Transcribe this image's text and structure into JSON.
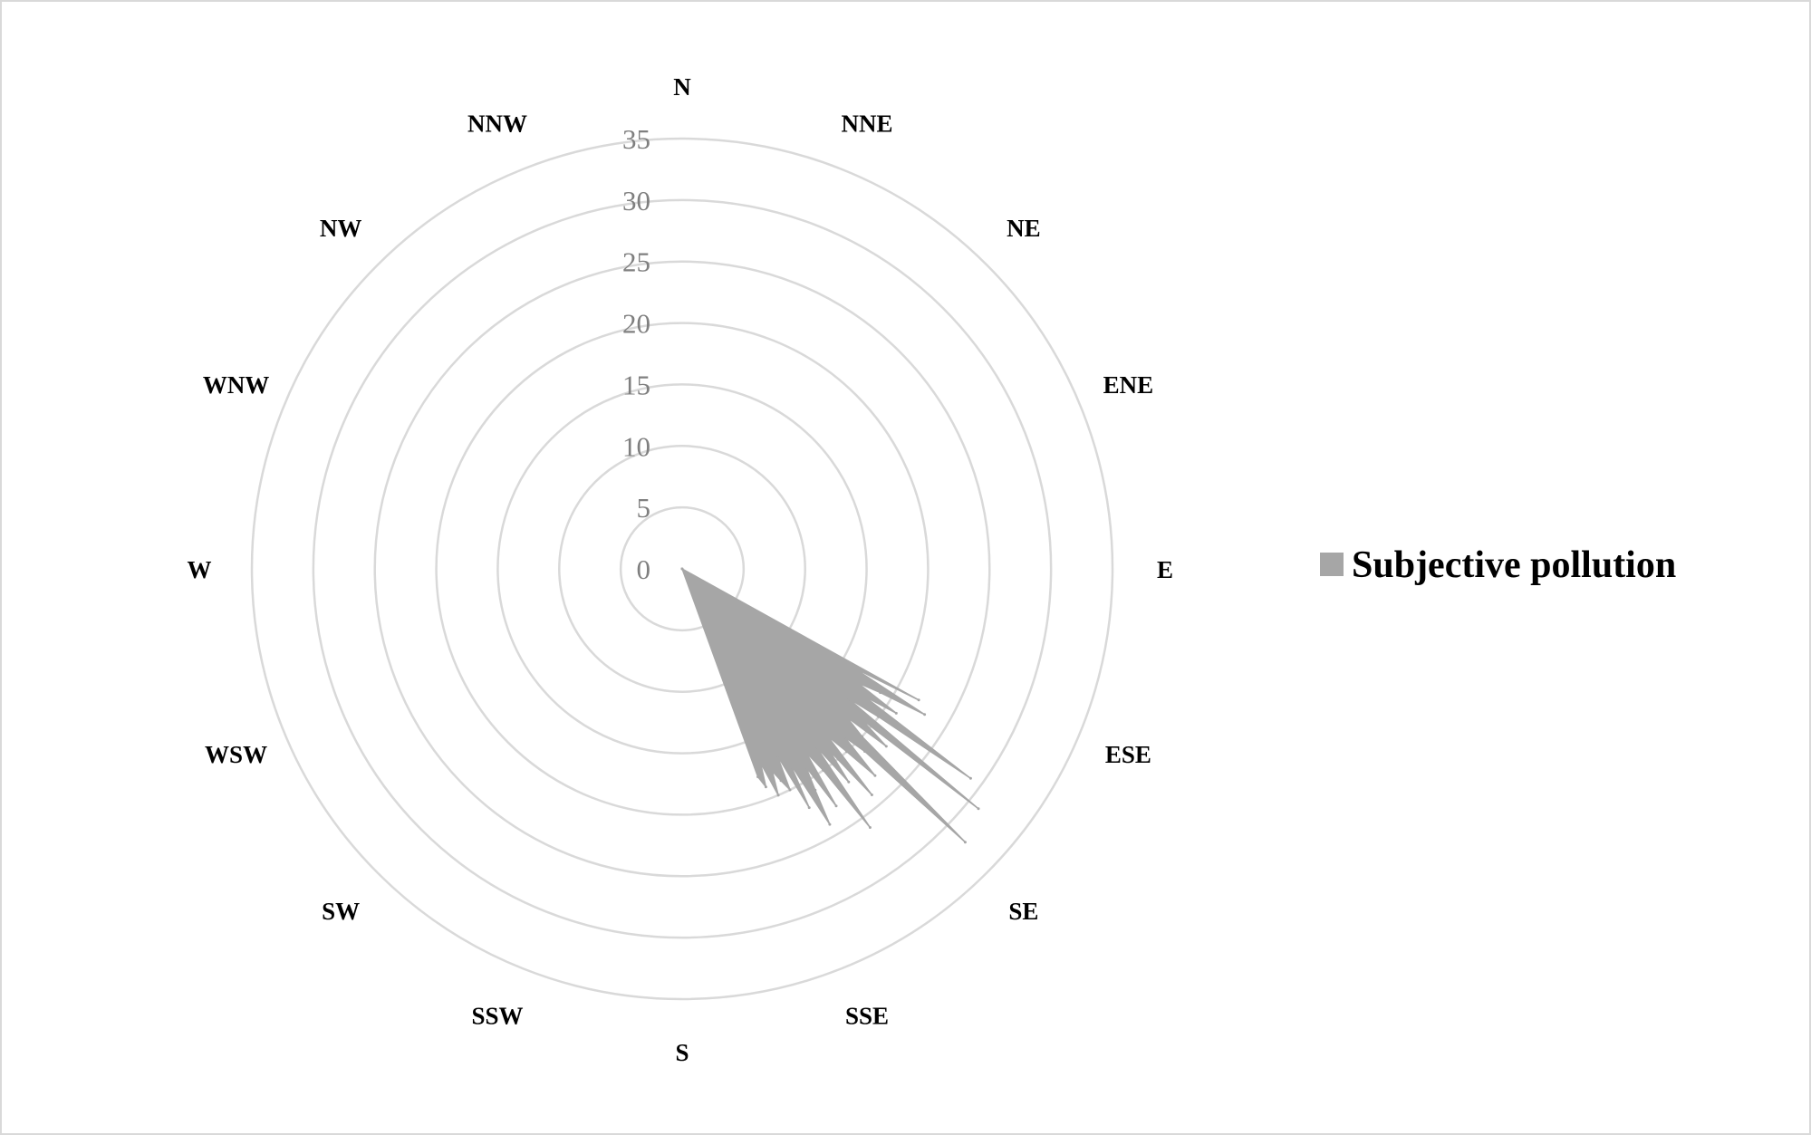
{
  "chart_data": {
    "type": "radar",
    "directions": [
      "N",
      "NNE",
      "NE",
      "ENE",
      "E",
      "ESE",
      "SE",
      "SSE",
      "S",
      "SSW",
      "SW",
      "WSW",
      "W",
      "WNW",
      "NW",
      "NNW"
    ],
    "radial_ticks": [
      0,
      5,
      10,
      15,
      20,
      25,
      30,
      35
    ],
    "rlim": [
      0,
      35
    ],
    "grid": true,
    "legend_position": "right",
    "colors": {
      "series": "#a6a6a6",
      "grid": "#d9d9d9",
      "tick_text": "#7f7f7f"
    },
    "series": [
      {
        "name": "Subjective pollution",
        "bearing_step_deg": 1,
        "points": [
          [
            118,
            0
          ],
          [
            119,
            22
          ],
          [
            120,
            16
          ],
          [
            121,
            23
          ],
          [
            122,
            19
          ],
          [
            123,
            17
          ],
          [
            124,
            21
          ],
          [
            125,
            18
          ],
          [
            126,
            29
          ],
          [
            127,
            20
          ],
          [
            128,
            17
          ],
          [
            129,
            31
          ],
          [
            130,
            19
          ],
          [
            131,
            22
          ],
          [
            132,
            18
          ],
          [
            133,
            20
          ],
          [
            134,
            32
          ],
          [
            135,
            21
          ],
          [
            136,
            19
          ],
          [
            137,
            23
          ],
          [
            138,
            20
          ],
          [
            139,
            18
          ],
          [
            140,
            24
          ],
          [
            141,
            19
          ],
          [
            142,
            22
          ],
          [
            143,
            18
          ],
          [
            144,
            26
          ],
          [
            145,
            20
          ],
          [
            146,
            18
          ],
          [
            147,
            23
          ],
          [
            148,
            19
          ],
          [
            149,
            21
          ],
          [
            150,
            24
          ],
          [
            151,
            18
          ],
          [
            152,
            22
          ],
          [
            153,
            17
          ],
          [
            154,
            20
          ],
          [
            155,
            19
          ],
          [
            156,
            18
          ],
          [
            157,
            20
          ],
          [
            158,
            17
          ],
          [
            159,
            19
          ],
          [
            160,
            18
          ],
          [
            161,
            0
          ]
        ]
      }
    ]
  }
}
